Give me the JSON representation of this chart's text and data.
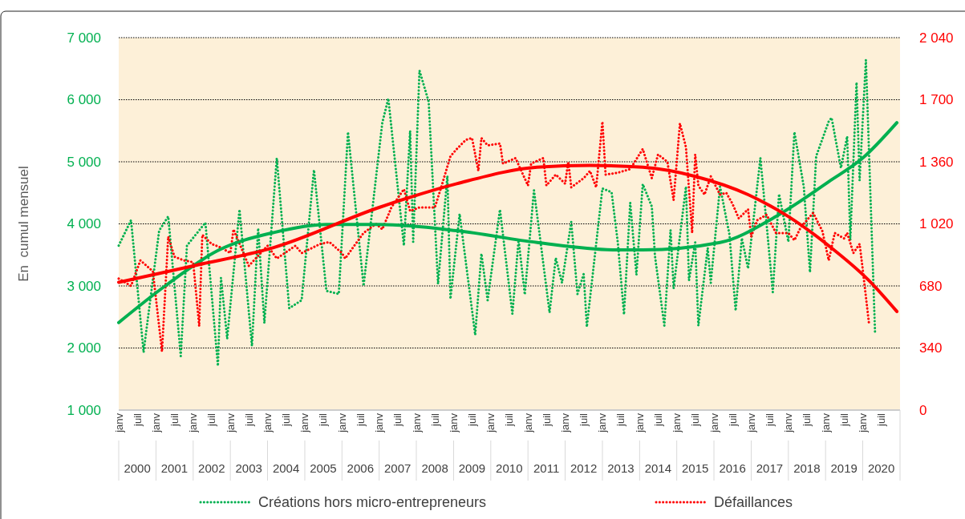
{
  "chart_data": {
    "type": "line",
    "ylabel": "En  cumul mensuel",
    "xlim": [
      "2000-01",
      "2021-01"
    ],
    "xticks": [
      {
        "value": "2000-01",
        "label": "janv"
      },
      {
        "value": "2000-07",
        "label": "juil"
      },
      {
        "value": "2001-01",
        "label": "janv"
      },
      {
        "value": "2001-07",
        "label": "juil"
      },
      {
        "value": "2002-01",
        "label": "janv"
      },
      {
        "value": "2002-07",
        "label": "juil"
      },
      {
        "value": "2003-01",
        "label": "janv"
      },
      {
        "value": "2003-07",
        "label": "juil"
      },
      {
        "value": "2004-01",
        "label": "janv"
      },
      {
        "value": "2004-07",
        "label": "juil"
      },
      {
        "value": "2005-01",
        "label": "janv"
      },
      {
        "value": "2005-07",
        "label": "juil"
      },
      {
        "value": "2006-01",
        "label": "janv"
      },
      {
        "value": "2006-07",
        "label": "juil"
      },
      {
        "value": "2007-01",
        "label": "janv"
      },
      {
        "value": "2007-07",
        "label": "juil"
      },
      {
        "value": "2008-01",
        "label": "janv"
      },
      {
        "value": "2008-07",
        "label": "juil"
      },
      {
        "value": "2009-01",
        "label": "janv"
      },
      {
        "value": "2009-07",
        "label": "juil"
      },
      {
        "value": "2010-01",
        "label": "janv"
      },
      {
        "value": "2010-07",
        "label": "juil"
      },
      {
        "value": "2011-01",
        "label": "janv"
      },
      {
        "value": "2011-07",
        "label": "juil"
      },
      {
        "value": "2012-01",
        "label": "janv"
      },
      {
        "value": "2012-07",
        "label": "juil"
      },
      {
        "value": "2013-01",
        "label": "janv"
      },
      {
        "value": "2013-07",
        "label": "juil"
      },
      {
        "value": "2014-01",
        "label": "janv"
      },
      {
        "value": "2014-07",
        "label": "juil"
      },
      {
        "value": "2015-01",
        "label": "janv"
      },
      {
        "value": "2015-07",
        "label": "juil"
      },
      {
        "value": "2016-01",
        "label": "janv"
      },
      {
        "value": "2016-07",
        "label": "juil"
      },
      {
        "value": "2017-01",
        "label": "janv"
      },
      {
        "value": "2017-07",
        "label": "juil"
      },
      {
        "value": "2018-01",
        "label": "janv"
      },
      {
        "value": "2018-07",
        "label": "juil"
      },
      {
        "value": "2019-01",
        "label": "janv"
      },
      {
        "value": "2019-07",
        "label": "juil"
      },
      {
        "value": "2020-01",
        "label": "janv"
      },
      {
        "value": "2020-07",
        "label": "juil"
      }
    ],
    "x2lim": [
      "2000-01",
      "2021-01"
    ],
    "x2ticks": [
      {
        "value": "2000-07",
        "label": "2000"
      },
      {
        "value": "2001-07",
        "label": "2001"
      },
      {
        "value": "2002-07",
        "label": "2002"
      },
      {
        "value": "2003-07",
        "label": "2003"
      },
      {
        "value": "2004-07",
        "label": "2004"
      },
      {
        "value": "2005-07",
        "label": "2005"
      },
      {
        "value": "2006-07",
        "label": "2006"
      },
      {
        "value": "2007-07",
        "label": "2007"
      },
      {
        "value": "2008-07",
        "label": "2008"
      },
      {
        "value": "2009-07",
        "label": "2009"
      },
      {
        "value": "2010-07",
        "label": "2010"
      },
      {
        "value": "2011-07",
        "label": "2011"
      },
      {
        "value": "2012-07",
        "label": "2012"
      },
      {
        "value": "2013-07",
        "label": "2013"
      },
      {
        "value": "2014-07",
        "label": "2014"
      },
      {
        "value": "2015-07",
        "label": "2015"
      },
      {
        "value": "2016-07",
        "label": "2016"
      },
      {
        "value": "2017-07",
        "label": "2017"
      },
      {
        "value": "2018-07",
        "label": "2018"
      },
      {
        "value": "2019-07",
        "label": "2019"
      },
      {
        "value": "2020-07",
        "label": "2020"
      }
    ],
    "ylim": [
      1000,
      7000
    ],
    "yticks": [
      {
        "value": 1000,
        "label": "1 000"
      },
      {
        "value": 2000,
        "label": "2 000"
      },
      {
        "value": 3000,
        "label": "3 000"
      },
      {
        "value": 4000,
        "label": "4 000"
      },
      {
        "value": 5000,
        "label": "5 000"
      },
      {
        "value": 6000,
        "label": "6 000"
      },
      {
        "value": 7000,
        "label": "7 000"
      }
    ],
    "y2lim": [
      0,
      2040
    ],
    "y2ticks": [
      0,
      340,
      680,
      {
        "value": 1020,
        "label": "1 020"
      },
      {
        "value": 1360,
        "label": "1 360"
      },
      {
        "value": 1700,
        "label": "1 700"
      },
      {
        "value": 2040,
        "label": "2 040"
      }
    ],
    "grid": "y",
    "legend": "bottom",
    "series": [
      {
        "name": "Créations hors micro-entrepreneurs",
        "color": "#00b050",
        "line_style": "dotted",
        "x": [
          "2000-01",
          "2000-05",
          "2000-09",
          "2001-02",
          "2001-05",
          "2001-09",
          "2001-11",
          "2002-05",
          "2002-09",
          "2002-10",
          "2002-12",
          "2003-04",
          "2003-08",
          "2003-10",
          "2003-12",
          "2004-04",
          "2004-08",
          "2004-12",
          "2005-04",
          "2005-08",
          "2005-12",
          "2006-03",
          "2006-08",
          "2007-02",
          "2007-04",
          "2007-09",
          "2007-11",
          "2007-12",
          "2008-02",
          "2008-05",
          "2008-08",
          "2008-11",
          "2008-12",
          "2009-03",
          "2009-08",
          "2009-10",
          "2009-12",
          "2010-04",
          "2010-08",
          "2010-10",
          "2010-12",
          "2011-03",
          "2011-08",
          "2011-10",
          "2011-12",
          "2012-03",
          "2012-05",
          "2012-07",
          "2012-08",
          "2013-01",
          "2013-04",
          "2013-06",
          "2013-08",
          "2013-10",
          "2013-12",
          "2014-02",
          "2014-05",
          "2014-06",
          "2014-09",
          "2014-11",
          "2014-12",
          "2015-04",
          "2015-05",
          "2015-07",
          "2015-08",
          "2015-11",
          "2015-12",
          "2016-03",
          "2016-06",
          "2016-08",
          "2016-10",
          "2016-12",
          "2017-04",
          "2017-06",
          "2017-08",
          "2017-10",
          "2018-01",
          "2018-03",
          "2018-06",
          "2018-08",
          "2018-10",
          "2019-02",
          "2019-03",
          "2019-06",
          "2019-08",
          "2019-09",
          "2019-11",
          "2019-12",
          "2020-02",
          "2020-05"
        ],
        "values": [
          3650,
          4060,
          1930,
          3890,
          4120,
          1870,
          3650,
          4020,
          1710,
          3130,
          2150,
          4230,
          2030,
          3930,
          2400,
          5060,
          2640,
          2770,
          4870,
          2920,
          2870,
          5480,
          3000,
          5630,
          6020,
          3650,
          5500,
          3710,
          6470,
          5970,
          3030,
          4770,
          2790,
          4160,
          2210,
          3520,
          2770,
          4230,
          2550,
          3740,
          2860,
          4540,
          2570,
          3450,
          3050,
          4030,
          2870,
          3190,
          2340,
          4570,
          4510,
          3700,
          2540,
          4340,
          3180,
          4640,
          4280,
          3480,
          2360,
          3900,
          2960,
          4600,
          3090,
          3700,
          2360,
          3610,
          3050,
          4600,
          3830,
          2600,
          3770,
          3280,
          5060,
          3990,
          2900,
          4480,
          3710,
          5480,
          4600,
          3220,
          5090,
          5650,
          5710,
          4900,
          5410,
          3740,
          6280,
          4700,
          6640,
          2230
        ]
      },
      {
        "name": "Défaillances",
        "color": "#ff0000",
        "line_style": "dotted",
        "axis": "y2",
        "x": [
          "2000-01",
          "2000-05",
          "2000-08",
          "2000-12",
          "2001-03",
          "2001-05",
          "2001-07",
          "2001-10",
          "2002-01",
          "2002-03",
          "2002-04",
          "2002-07",
          "2002-10",
          "2003-01",
          "2003-02",
          "2003-07",
          "2004-01",
          "2004-04",
          "2004-10",
          "2004-12",
          "2005-06",
          "2005-09",
          "2006-01",
          "2006-02",
          "2006-05",
          "2006-08",
          "2006-12",
          "2007-02",
          "2007-05",
          "2007-09",
          "2007-11",
          "2008-02",
          "2008-07",
          "2008-09",
          "2008-12",
          "2009-02",
          "2009-05",
          "2009-07",
          "2009-09",
          "2009-10",
          "2009-12",
          "2010-04",
          "2010-05",
          "2010-09",
          "2011-01",
          "2011-02",
          "2011-06",
          "2011-07",
          "2011-10",
          "2012-01",
          "2012-02",
          "2012-03",
          "2012-07",
          "2012-09",
          "2012-11",
          "2013-01",
          "2013-02",
          "2013-06",
          "2013-10",
          "2014-02",
          "2014-05",
          "2014-07",
          "2014-10",
          "2014-12",
          "2015-02",
          "2015-04",
          "2015-06",
          "2015-07",
          "2015-08",
          "2015-10",
          "2015-12",
          "2016-03",
          "2016-05",
          "2016-07",
          "2016-09",
          "2016-12",
          "2017-01",
          "2017-03",
          "2017-06",
          "2017-09",
          "2018-01",
          "2018-03",
          "2018-05",
          "2018-09",
          "2018-12",
          "2019-02",
          "2019-04",
          "2019-07",
          "2019-08",
          "2019-10",
          "2019-12",
          "2020-01",
          "2020-03"
        ],
        "values": [
          720,
          680,
          820,
          760,
          320,
          950,
          840,
          820,
          810,
          460,
          960,
          910,
          890,
          860,
          990,
          790,
          900,
          830,
          900,
          860,
          910,
          920,
          860,
          830,
          900,
          970,
          1020,
          990,
          1110,
          1210,
          1090,
          1110,
          1110,
          1220,
          1390,
          1430,
          1480,
          1490,
          1310,
          1490,
          1450,
          1460,
          1350,
          1380,
          1230,
          1350,
          1380,
          1230,
          1290,
          1240,
          1360,
          1220,
          1270,
          1310,
          1220,
          1580,
          1290,
          1300,
          1320,
          1430,
          1270,
          1400,
          1360,
          1150,
          1570,
          1440,
          970,
          1400,
          1230,
          1180,
          1280,
          1180,
          1190,
          1130,
          1050,
          1100,
          950,
          1040,
          1070,
          970,
          970,
          930,
          1000,
          1080,
          980,
          820,
          970,
          940,
          970,
          860,
          910,
          770,
          480
        ]
      },
      {
        "color": "#00b050",
        "line_style": "solid",
        "x": [
          "2000-01",
          "2001-04",
          "2002-09",
          "2004-03",
          "2005-08",
          "2007-01",
          "2009-02",
          "2011-04",
          "2013-06",
          "2014-02",
          "2016-03",
          "2017-09",
          "2019-02",
          "2020-01",
          "2020-12"
        ],
        "values": [
          2410,
          3000,
          3570,
          3860,
          3990,
          3990,
          3890,
          3700,
          3580,
          3580,
          3700,
          4120,
          4680,
          5060,
          5630
        ]
      },
      {
        "color": "#ff0000",
        "line_style": "solid",
        "axis": "y2",
        "x": [
          "2000-01",
          "2002-01",
          "2004-03",
          "2007-01",
          "2009-02",
          "2011-04",
          "2012-09",
          "2014-02",
          "2015-07",
          "2016-12",
          "2018-01",
          "2019-02",
          "2020-03",
          "2020-12"
        ],
        "values": [
          700,
          790,
          890,
          1110,
          1240,
          1330,
          1340,
          1330,
          1280,
          1180,
          1060,
          900,
          710,
          540
        ]
      }
    ]
  }
}
